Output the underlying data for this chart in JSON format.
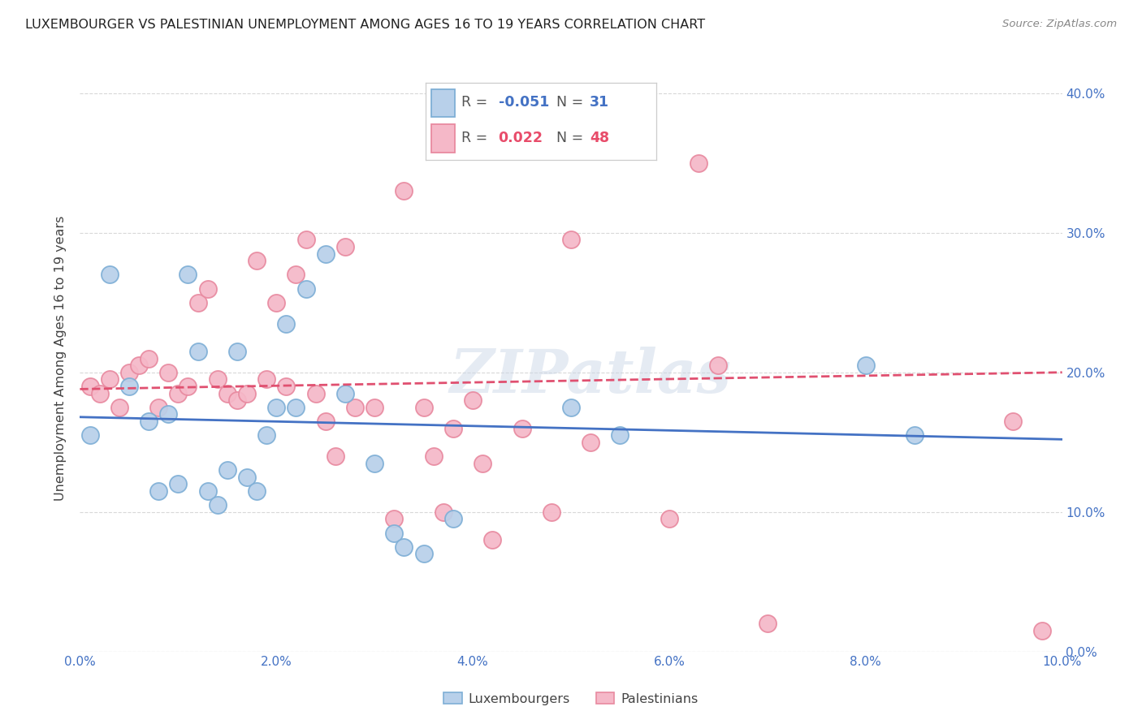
{
  "title": "LUXEMBOURGER VS PALESTINIAN UNEMPLOYMENT AMONG AGES 16 TO 19 YEARS CORRELATION CHART",
  "source": "Source: ZipAtlas.com",
  "ylabel": "Unemployment Among Ages 16 to 19 years",
  "xlim": [
    0.0,
    0.1
  ],
  "ylim": [
    0.0,
    0.42
  ],
  "lux_scatter_x": [
    0.001,
    0.003,
    0.005,
    0.007,
    0.008,
    0.009,
    0.01,
    0.011,
    0.012,
    0.013,
    0.014,
    0.015,
    0.016,
    0.017,
    0.018,
    0.019,
    0.02,
    0.021,
    0.022,
    0.023,
    0.025,
    0.027,
    0.03,
    0.032,
    0.033,
    0.035,
    0.038,
    0.05,
    0.055,
    0.08,
    0.085
  ],
  "lux_scatter_y": [
    0.155,
    0.27,
    0.19,
    0.165,
    0.115,
    0.17,
    0.12,
    0.27,
    0.215,
    0.115,
    0.105,
    0.13,
    0.215,
    0.125,
    0.115,
    0.155,
    0.175,
    0.235,
    0.175,
    0.26,
    0.285,
    0.185,
    0.135,
    0.085,
    0.075,
    0.07,
    0.095,
    0.175,
    0.155,
    0.205,
    0.155
  ],
  "pal_scatter_x": [
    0.001,
    0.002,
    0.003,
    0.004,
    0.005,
    0.006,
    0.007,
    0.008,
    0.009,
    0.01,
    0.011,
    0.012,
    0.013,
    0.014,
    0.015,
    0.016,
    0.017,
    0.018,
    0.019,
    0.02,
    0.021,
    0.022,
    0.023,
    0.024,
    0.025,
    0.026,
    0.027,
    0.028,
    0.03,
    0.032,
    0.033,
    0.035,
    0.036,
    0.037,
    0.038,
    0.04,
    0.041,
    0.042,
    0.045,
    0.048,
    0.05,
    0.052,
    0.06,
    0.063,
    0.065,
    0.07,
    0.095,
    0.098
  ],
  "pal_scatter_y": [
    0.19,
    0.185,
    0.195,
    0.175,
    0.2,
    0.205,
    0.21,
    0.175,
    0.2,
    0.185,
    0.19,
    0.25,
    0.26,
    0.195,
    0.185,
    0.18,
    0.185,
    0.28,
    0.195,
    0.25,
    0.19,
    0.27,
    0.295,
    0.185,
    0.165,
    0.14,
    0.29,
    0.175,
    0.175,
    0.095,
    0.33,
    0.175,
    0.14,
    0.1,
    0.16,
    0.18,
    0.135,
    0.08,
    0.16,
    0.1,
    0.295,
    0.15,
    0.095,
    0.35,
    0.205,
    0.02,
    0.165,
    0.015
  ],
  "lux_color": "#b8d0ea",
  "lux_edge": "#7fafd6",
  "pal_color": "#f5b8c8",
  "pal_edge": "#e88aa0",
  "lux_line_color": "#4472c4",
  "pal_line_color": "#e05070",
  "lux_trend_y0": 0.168,
  "lux_trend_y1": 0.152,
  "pal_trend_y0": 0.188,
  "pal_trend_y1": 0.2,
  "legend_r1": "-0.051",
  "legend_n1": "31",
  "legend_r2": "0.022",
  "legend_n2": "48",
  "watermark": "ZIPatlas",
  "background_color": "#ffffff",
  "grid_color": "#d8d8d8",
  "bottom_legend": [
    "Luxembourgers",
    "Palestinians"
  ]
}
